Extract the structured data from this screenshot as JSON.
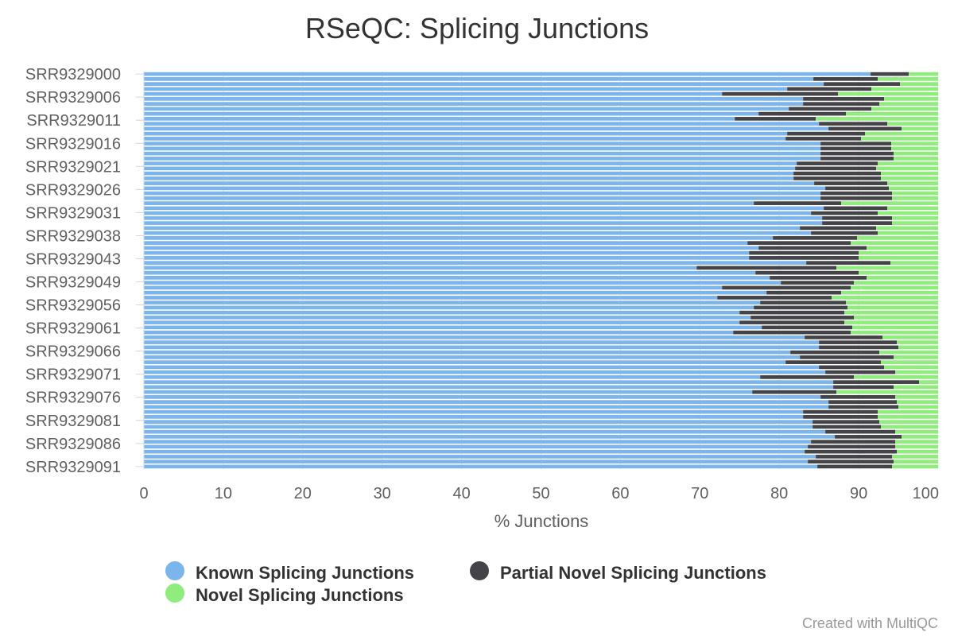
{
  "chart_data": {
    "type": "bar",
    "orientation": "horizontal",
    "stacked": true,
    "title": "RSeQC: Splicing Junctions",
    "xlabel": "% Junctions",
    "ylabel": "",
    "xlim": [
      0,
      100
    ],
    "xticks": [
      0,
      10,
      20,
      30,
      40,
      50,
      60,
      70,
      80,
      90,
      100
    ],
    "grid": true,
    "legend_position": "bottom",
    "y_tick_labels": [
      "SRR9329000",
      "SRR9329006",
      "SRR9329011",
      "SRR9329016",
      "SRR9329021",
      "SRR9329026",
      "SRR9329031",
      "SRR9329038",
      "SRR9329043",
      "SRR9329049",
      "SRR9329056",
      "SRR9329061",
      "SRR9329066",
      "SRR9329071",
      "SRR9329076",
      "SRR9329081",
      "SRR9329086",
      "SRR9329091"
    ],
    "series": [
      {
        "name": "Known Splicing Junctions",
        "color": "#7cb5ec"
      },
      {
        "name": "Partial Novel Splicing Junctions",
        "color": "#434348"
      },
      {
        "name": "Novel Splicing Junctions",
        "color": "#90ed7d"
      }
    ],
    "known": [
      91.5,
      84.3,
      85.6,
      81.0,
      72.8,
      83.0,
      83.0,
      81.2,
      77.4,
      74.4,
      85.0,
      86.2,
      81.0,
      80.8,
      85.2,
      85.2,
      85.2,
      85.2,
      82.2,
      82.0,
      81.8,
      81.8,
      84.4,
      85.8,
      85.2,
      85.2,
      76.8,
      85.6,
      84.0,
      85.4,
      85.4,
      82.6,
      84.0,
      79.2,
      76.0,
      77.4,
      76.2,
      76.2,
      83.4,
      69.6,
      77.0,
      78.8,
      80.2,
      72.8,
      78.4,
      72.2,
      77.6,
      76.8,
      75.0,
      76.4,
      75.0,
      77.8,
      74.2,
      83.2,
      85.0,
      85.0,
      81.4,
      82.6,
      80.8,
      85.0,
      85.8,
      77.6,
      86.8,
      86.8,
      76.6,
      85.2,
      86.2,
      86.2,
      83.0,
      83.0,
      84.2,
      84.2,
      85.8,
      87.0,
      84.0,
      83.6,
      83.2,
      84.6,
      83.6,
      84.8
    ],
    "partial": [
      4.8,
      8.1,
      9.6,
      10.6,
      14.6,
      10.2,
      9.6,
      10.4,
      11.0,
      10.2,
      8.6,
      9.2,
      9.8,
      9.5,
      8.9,
      8.9,
      9.2,
      9.2,
      10.2,
      10.2,
      11.0,
      11.0,
      9.2,
      8.0,
      9.0,
      9.0,
      11.0,
      8.0,
      8.4,
      8.8,
      8.8,
      9.6,
      8.4,
      10.6,
      13.0,
      13.6,
      13.8,
      13.8,
      10.6,
      17.6,
      13.0,
      12.2,
      9.2,
      16.2,
      9.4,
      14.4,
      10.8,
      11.8,
      13.2,
      13.0,
      13.2,
      11.4,
      14.8,
      9.8,
      9.8,
      10.0,
      11.2,
      11.8,
      12.0,
      8.2,
      8.8,
      11.8,
      10.8,
      7.6,
      10.6,
      9.4,
      8.6,
      8.8,
      9.4,
      9.4,
      8.4,
      8.6,
      8.8,
      8.4,
      10.6,
      11.0,
      11.6,
      9.6,
      10.8,
      9.4
    ],
    "novel": [
      3.7,
      7.6,
      4.8,
      8.4,
      12.6,
      6.8,
      7.4,
      8.4,
      11.6,
      15.4,
      6.4,
      4.6,
      9.2,
      9.7,
      5.9,
      5.9,
      5.6,
      5.6,
      7.6,
      7.8,
      7.2,
      7.2,
      6.4,
      6.2,
      5.8,
      5.8,
      12.2,
      6.4,
      7.6,
      5.8,
      5.8,
      7.8,
      7.6,
      10.2,
      11.0,
      9.0,
      10.0,
      10.0,
      6.0,
      12.8,
      10.0,
      9.0,
      10.6,
      11.0,
      12.2,
      13.4,
      11.6,
      11.4,
      11.8,
      10.6,
      11.8,
      10.8,
      11.0,
      7.0,
      5.2,
      5.0,
      7.4,
      5.6,
      7.2,
      6.8,
      5.4,
      10.6,
      2.4,
      5.6,
      12.8,
      5.4,
      5.2,
      5.0,
      7.6,
      7.6,
      7.4,
      7.2,
      5.4,
      4.6,
      5.4,
      5.4,
      5.2,
      5.8,
      5.6,
      5.8
    ]
  },
  "legend": {
    "known": "Known Splicing Junctions",
    "partial": "Partial Novel Splicing Junctions",
    "novel": "Novel Splicing Junctions"
  },
  "credit": "Created with MultiQC"
}
